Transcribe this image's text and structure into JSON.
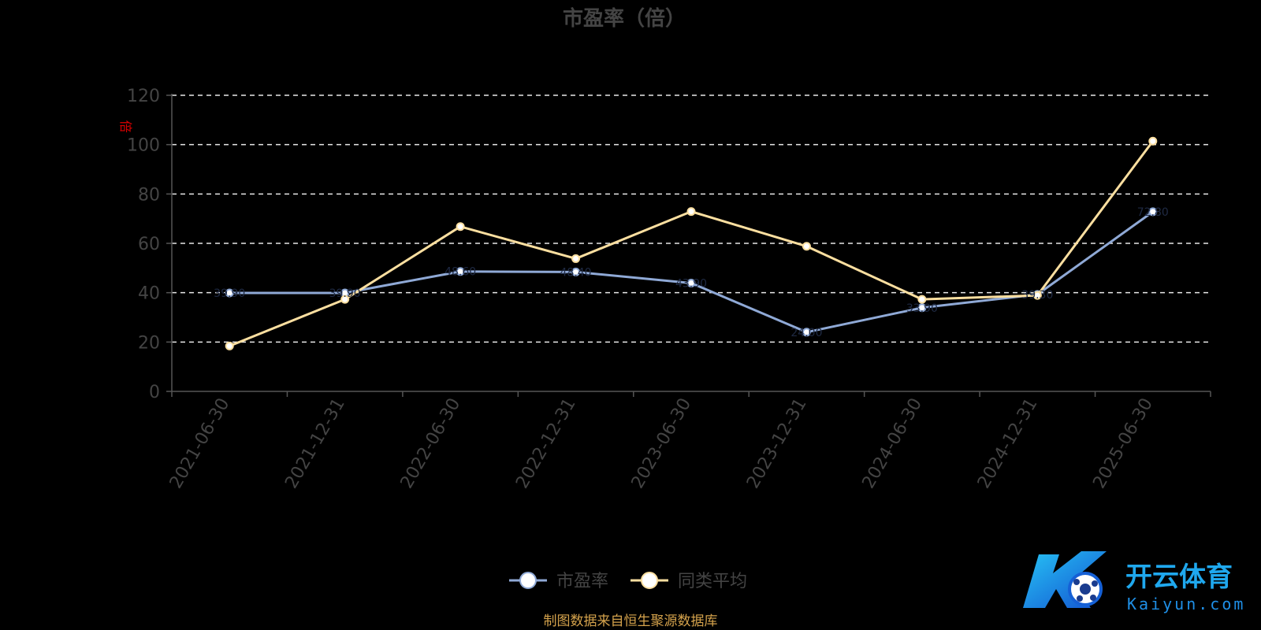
{
  "chart_data": {
    "type": "line",
    "title": "市盈率（倍）",
    "y_unit": "倍",
    "categories": [
      "2021-06-30",
      "2021-12-31",
      "2022-06-30",
      "2022-12-31",
      "2023-06-30",
      "2023-12-31",
      "2024-06-30",
      "2024-12-31",
      "2025-06-30"
    ],
    "series": [
      {
        "name": "市盈率",
        "color": "#8fa9d6",
        "values": [
          39.9,
          39.9,
          48.6,
          48.4,
          43.9,
          24.0,
          33.9,
          39.3,
          72.8
        ]
      },
      {
        "name": "同类平均",
        "color": "#fcdfa0",
        "values": [
          18.4,
          37.3,
          66.8,
          53.8,
          72.9,
          58.8,
          37.3,
          38.9,
          101.4
        ]
      }
    ],
    "ylim": [
      0,
      120
    ],
    "yticks": [
      0,
      20,
      40,
      60,
      80,
      100,
      120
    ],
    "grid": "dashed-horizontal",
    "legend_position": "bottom-center",
    "source": "制图数据来自恒生聚源数据库"
  },
  "watermark": {
    "text_cn": "开云体育",
    "text_en": "Kaiyun.com",
    "colors": [
      "#1fb3f0",
      "#1560d6"
    ]
  }
}
